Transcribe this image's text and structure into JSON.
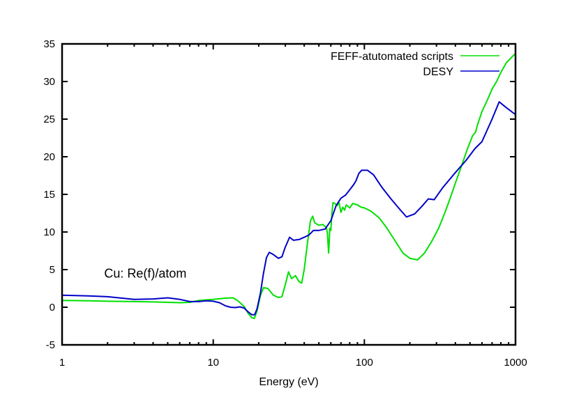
{
  "chart_data": {
    "type": "line",
    "title": "",
    "xlabel": "Energy (eV)",
    "ylabel": "",
    "xscale": "log",
    "xlim": [
      1,
      1000
    ],
    "ylim": [
      -5,
      35
    ],
    "grid": false,
    "legend_position": "top-right",
    "xticks": [
      1,
      10,
      100,
      1000
    ],
    "xtick_labels": [
      "1",
      "10",
      "100",
      "1000"
    ],
    "yticks": [
      -5,
      0,
      5,
      10,
      15,
      20,
      25,
      30,
      35
    ],
    "ytick_labels": [
      "-5",
      "0",
      "5",
      "10",
      "15",
      "20",
      "25",
      "30",
      "35"
    ],
    "annotations": [
      {
        "text": "Cu: Re(f)/atom",
        "x": 1.9,
        "y": 4.5
      }
    ],
    "series": [
      {
        "name": "FEFF-atutomated scripts",
        "color": "#00e000",
        "points": [
          [
            1,
            0.9
          ],
          [
            1.5,
            0.85
          ],
          [
            2,
            0.8
          ],
          [
            3,
            0.75
          ],
          [
            4,
            0.7
          ],
          [
            5,
            0.65
          ],
          [
            6,
            0.6
          ],
          [
            7,
            0.65
          ],
          [
            8,
            0.9
          ],
          [
            10,
            1.05
          ],
          [
            12,
            1.2
          ],
          [
            13.5,
            1.25
          ],
          [
            14.5,
            0.9
          ],
          [
            16,
            0.1
          ],
          [
            17,
            -0.8
          ],
          [
            18,
            -1.4
          ],
          [
            18.7,
            -1.5
          ],
          [
            19.5,
            -0.5
          ],
          [
            20.5,
            1.5
          ],
          [
            21.5,
            2.6
          ],
          [
            23,
            2.5
          ],
          [
            25,
            1.6
          ],
          [
            27,
            1.3
          ],
          [
            28.5,
            1.4
          ],
          [
            30,
            3.0
          ],
          [
            31.5,
            4.7
          ],
          [
            33,
            3.8
          ],
          [
            35,
            4.2
          ],
          [
            37,
            3.4
          ],
          [
            38.5,
            3.2
          ],
          [
            40,
            5.0
          ],
          [
            42,
            8.5
          ],
          [
            44,
            11.5
          ],
          [
            45.5,
            12.1
          ],
          [
            47,
            11.2
          ],
          [
            50,
            10.9
          ],
          [
            53,
            11.0
          ],
          [
            56,
            10.6
          ],
          [
            57,
            9.8
          ],
          [
            58,
            7.2
          ],
          [
            58.5,
            8.5
          ],
          [
            59,
            10.5
          ],
          [
            60,
            10.2
          ],
          [
            61,
            12.5
          ],
          [
            62,
            13.9
          ],
          [
            64,
            13.8
          ],
          [
            66,
            13.5
          ],
          [
            68,
            13.9
          ],
          [
            70,
            12.6
          ],
          [
            72,
            13.3
          ],
          [
            74,
            12.9
          ],
          [
            76,
            13.6
          ],
          [
            80,
            13.2
          ],
          [
            84,
            13.8
          ],
          [
            90,
            13.6
          ],
          [
            95,
            13.3
          ],
          [
            100,
            13.2
          ],
          [
            110,
            12.8
          ],
          [
            125,
            11.9
          ],
          [
            140,
            10.6
          ],
          [
            160,
            8.8
          ],
          [
            180,
            7.2
          ],
          [
            200,
            6.5
          ],
          [
            225,
            6.3
          ],
          [
            250,
            7.2
          ],
          [
            280,
            8.8
          ],
          [
            310,
            10.5
          ],
          [
            340,
            12.5
          ],
          [
            370,
            14.5
          ],
          [
            400,
            16.5
          ],
          [
            440,
            18.8
          ],
          [
            480,
            21.0
          ],
          [
            520,
            22.8
          ],
          [
            545,
            23.3
          ],
          [
            560,
            24.2
          ],
          [
            600,
            26.0
          ],
          [
            650,
            27.5
          ],
          [
            700,
            29.0
          ],
          [
            750,
            30.0
          ],
          [
            800,
            31.2
          ],
          [
            870,
            32.5
          ],
          [
            950,
            33.3
          ],
          [
            1000,
            33.7
          ]
        ]
      },
      {
        "name": "DESY",
        "color": "#0000c8",
        "points": [
          [
            1,
            1.6
          ],
          [
            1.5,
            1.5
          ],
          [
            2,
            1.4
          ],
          [
            2.5,
            1.2
          ],
          [
            3,
            1.05
          ],
          [
            4,
            1.1
          ],
          [
            5,
            1.25
          ],
          [
            6,
            1.05
          ],
          [
            7,
            0.75
          ],
          [
            8,
            0.75
          ],
          [
            9,
            0.85
          ],
          [
            10,
            0.8
          ],
          [
            11,
            0.6
          ],
          [
            12,
            0.2
          ],
          [
            13,
            0.0
          ],
          [
            14,
            -0.05
          ],
          [
            15,
            0.05
          ],
          [
            16,
            -0.1
          ],
          [
            17,
            -0.6
          ],
          [
            18,
            -1.0
          ],
          [
            18.8,
            -1.0
          ],
          [
            19.5,
            -0.2
          ],
          [
            20.5,
            1.8
          ],
          [
            21.5,
            4.5
          ],
          [
            22.5,
            6.6
          ],
          [
            23.5,
            7.3
          ],
          [
            25,
            7.0
          ],
          [
            27,
            6.5
          ],
          [
            28.5,
            6.7
          ],
          [
            30,
            8.0
          ],
          [
            32,
            9.3
          ],
          [
            34,
            8.9
          ],
          [
            37,
            9.0
          ],
          [
            40,
            9.3
          ],
          [
            43,
            9.6
          ],
          [
            46,
            10.2
          ],
          [
            50,
            10.2
          ],
          [
            55,
            10.4
          ],
          [
            60,
            11.5
          ],
          [
            65,
            13.5
          ],
          [
            70,
            14.5
          ],
          [
            75,
            14.9
          ],
          [
            80,
            15.6
          ],
          [
            85,
            16.3
          ],
          [
            88,
            16.8
          ],
          [
            92,
            17.8
          ],
          [
            96,
            18.2
          ],
          [
            105,
            18.2
          ],
          [
            115,
            17.6
          ],
          [
            130,
            16.0
          ],
          [
            150,
            14.4
          ],
          [
            170,
            13.1
          ],
          [
            190,
            12.0
          ],
          [
            215,
            12.4
          ],
          [
            240,
            13.4
          ],
          [
            265,
            14.4
          ],
          [
            290,
            14.3
          ],
          [
            330,
            15.9
          ],
          [
            400,
            17.9
          ],
          [
            470,
            19.5
          ],
          [
            540,
            21.1
          ],
          [
            600,
            22.0
          ],
          [
            700,
            25.0
          ],
          [
            780,
            27.3
          ],
          [
            860,
            26.6
          ],
          [
            1000,
            25.6
          ]
        ]
      }
    ]
  }
}
